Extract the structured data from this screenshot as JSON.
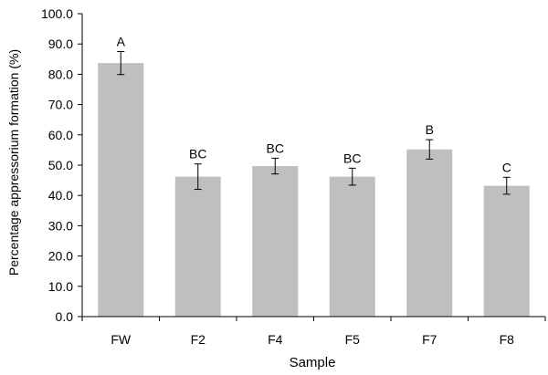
{
  "chart_data": {
    "type": "bar",
    "title": "",
    "xlabel": "Sample",
    "ylabel": "Percentage appressorium formation (%)",
    "ylim": [
      0,
      100
    ],
    "ytick_step": 10,
    "ytick_labels": [
      "0.0",
      "10.0",
      "20.0",
      "30.0",
      "40.0",
      "50.0",
      "60.0",
      "70.0",
      "80.0",
      "90.0",
      "100.0"
    ],
    "categories": [
      "FW",
      "F2",
      "F4",
      "F5",
      "F7",
      "F8"
    ],
    "values": [
      83.7,
      46.2,
      49.7,
      46.2,
      55.2,
      43.2
    ],
    "errors": [
      3.8,
      4.2,
      2.6,
      2.8,
      3.2,
      2.8
    ],
    "significance_labels": [
      "A",
      "BC",
      "BC",
      "BC",
      "B",
      "C"
    ],
    "bar_color": "#bfbfbf",
    "grid": false,
    "legend": "none"
  }
}
